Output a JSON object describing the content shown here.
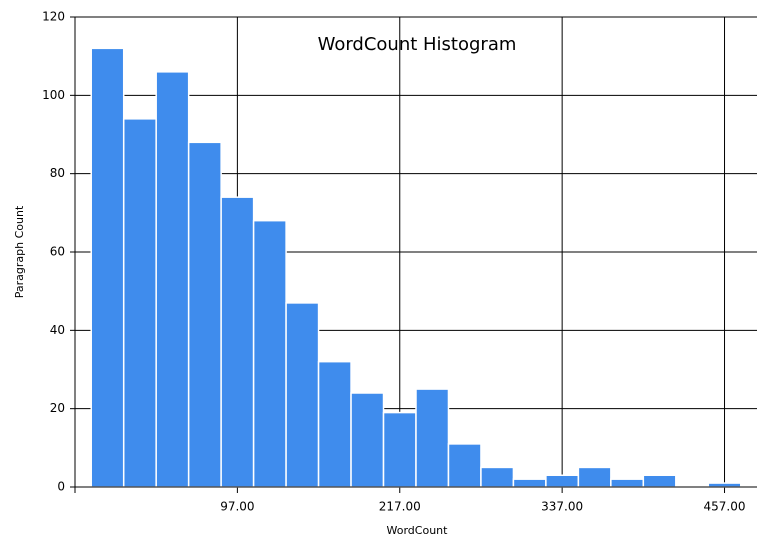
{
  "chart_data": {
    "type": "histogram",
    "title": "WordCount Histogram",
    "x_label": "WordCount",
    "y_label": "Paragraph Count",
    "bins": [
      -11,
      13,
      37,
      61,
      85,
      109,
      133,
      157,
      181,
      205,
      229,
      253,
      277,
      301,
      325,
      349,
      373,
      397,
      421,
      445,
      469
    ],
    "values": [
      112,
      94,
      106,
      88,
      74,
      68,
      47,
      32,
      24,
      19,
      25,
      11,
      5,
      2,
      3,
      5,
      2,
      3,
      0,
      1
    ],
    "color": "#3f8ced",
    "xlim": [
      -23,
      481
    ],
    "xticks": [
      {
        "value": 97,
        "label": "97.00"
      },
      {
        "value": 217,
        "label": "217.00"
      },
      {
        "value": 337,
        "label": "337.00"
      },
      {
        "value": 457,
        "label": "457.00"
      }
    ],
    "ylim": [
      0,
      120
    ],
    "yticks": [
      0,
      20,
      40,
      60,
      80,
      100,
      120
    ],
    "grid": true
  }
}
